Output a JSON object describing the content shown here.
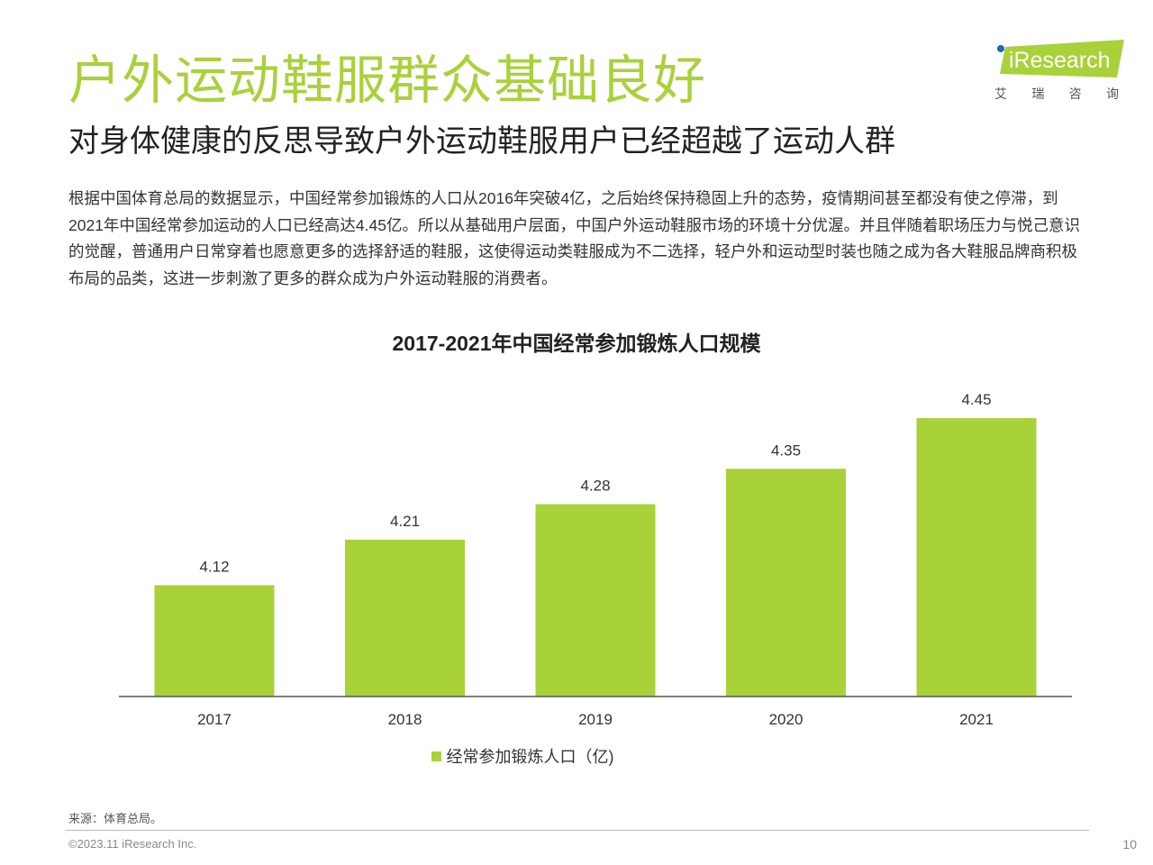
{
  "header": {
    "title": "户外运动鞋服群众基础良好",
    "subtitle": "对身体健康的反思导致户外运动鞋服用户已经超越了运动人群"
  },
  "logo": {
    "brand": "iResearch",
    "chinese_chars": [
      "艾",
      "瑞",
      "咨",
      "询"
    ]
  },
  "body": {
    "paragraph": "根据中国体育总局的数据显示，中国经常参加锻炼的人口从2016年突破4亿，之后始终保持稳固上升的态势，疫情期间甚至都没有使之停滞，到2021年中国经常参加运动的人口已经高达4.45亿。所以从基础用户层面，中国户外运动鞋服市场的环境十分优渥。并且伴随着职场压力与悦己意识的觉醒，普通用户日常穿着也愿意更多的选择舒适的鞋服，这使得运动类鞋服成为不二选择，轻户外和运动型时装也随之成为各大鞋服品牌商积极布局的品类，这进一步刺激了更多的群众成为户外运动鞋服的消费者。"
  },
  "chart_data": {
    "type": "bar",
    "title": "2017-2021年中国经常参加锻炼人口规模",
    "categories": [
      "2017",
      "2018",
      "2019",
      "2020",
      "2021"
    ],
    "series": [
      {
        "name": "经常参加锻炼人口（亿)",
        "values": [
          4.12,
          4.21,
          4.28,
          4.35,
          4.45
        ]
      }
    ],
    "value_labels": [
      "4.12",
      "4.21",
      "4.28",
      "4.35",
      "4.45"
    ],
    "ylim": [
      3.9,
      4.5
    ],
    "grid": false,
    "legend_position": "bottom",
    "colors": {
      "bar": "#a9d13a",
      "axis": "#555555"
    }
  },
  "footer": {
    "source": "来源：体育总局。",
    "copyright": "©2023.11 iResearch Inc.",
    "page_number": "10"
  },
  "colors": {
    "accent": "#a9d13a",
    "text": "#333333"
  }
}
